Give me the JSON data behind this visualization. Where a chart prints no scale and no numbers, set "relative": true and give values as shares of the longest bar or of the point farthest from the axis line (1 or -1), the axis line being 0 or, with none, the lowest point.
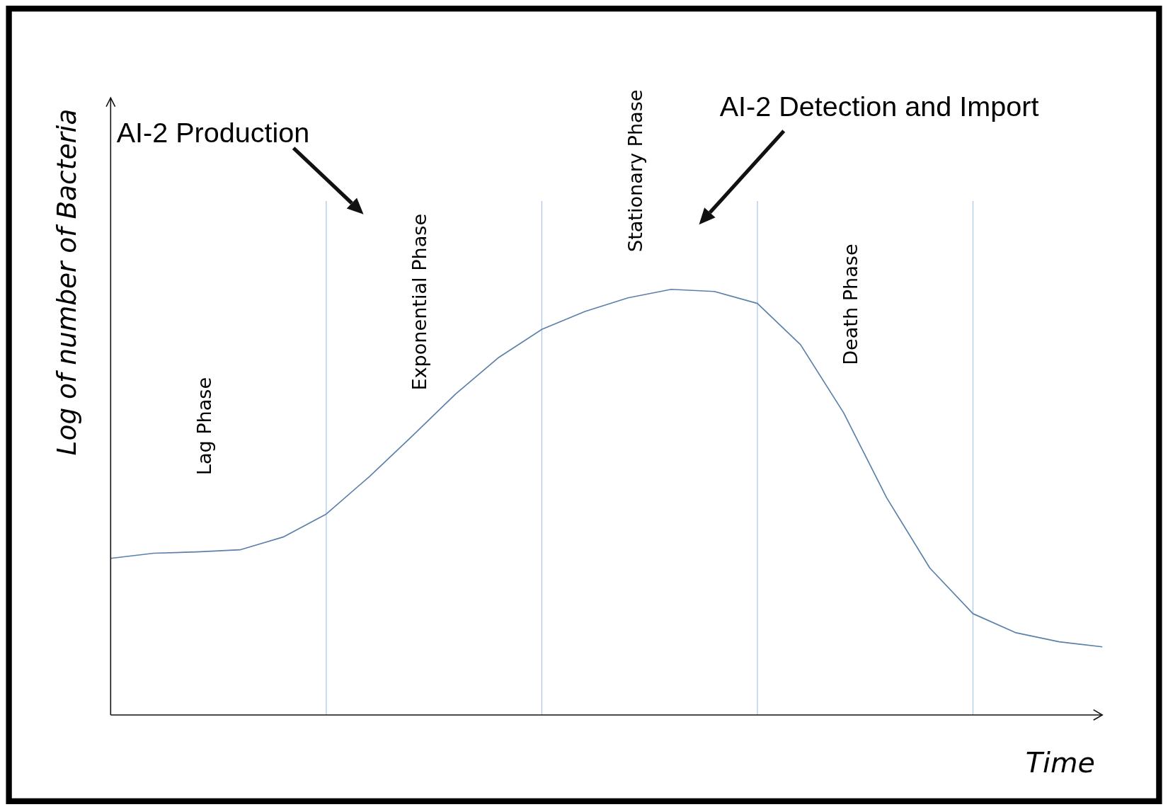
{
  "chart_data": {
    "type": "line",
    "relative": true,
    "xlabel": "Time",
    "ylabel": "Log of number of Bacteria",
    "categories": [
      null,
      null,
      null,
      null,
      null,
      null,
      null,
      null,
      null,
      null,
      null,
      null,
      null,
      null,
      null,
      null,
      null,
      null,
      null,
      null,
      null,
      null,
      null,
      null
    ],
    "series": [
      {
        "color": "#5b80aa",
        "values": [
          0.368,
          0.38,
          0.383,
          0.388,
          0.418,
          0.472,
          0.56,
          0.656,
          0.754,
          0.84,
          0.906,
          0.948,
          0.98,
          1,
          0.995,
          0.967,
          0.87,
          0.71,
          0.51,
          0.345,
          0.238,
          0.193,
          0.172,
          0.16
        ]
      }
    ],
    "grid": "x",
    "annotations": [
      "Lag Phase",
      "Exponential Phase",
      "Stationary Phase",
      "Death Phase",
      "AI-2 Production",
      "AI-2 Detection and Import"
    ]
  }
}
